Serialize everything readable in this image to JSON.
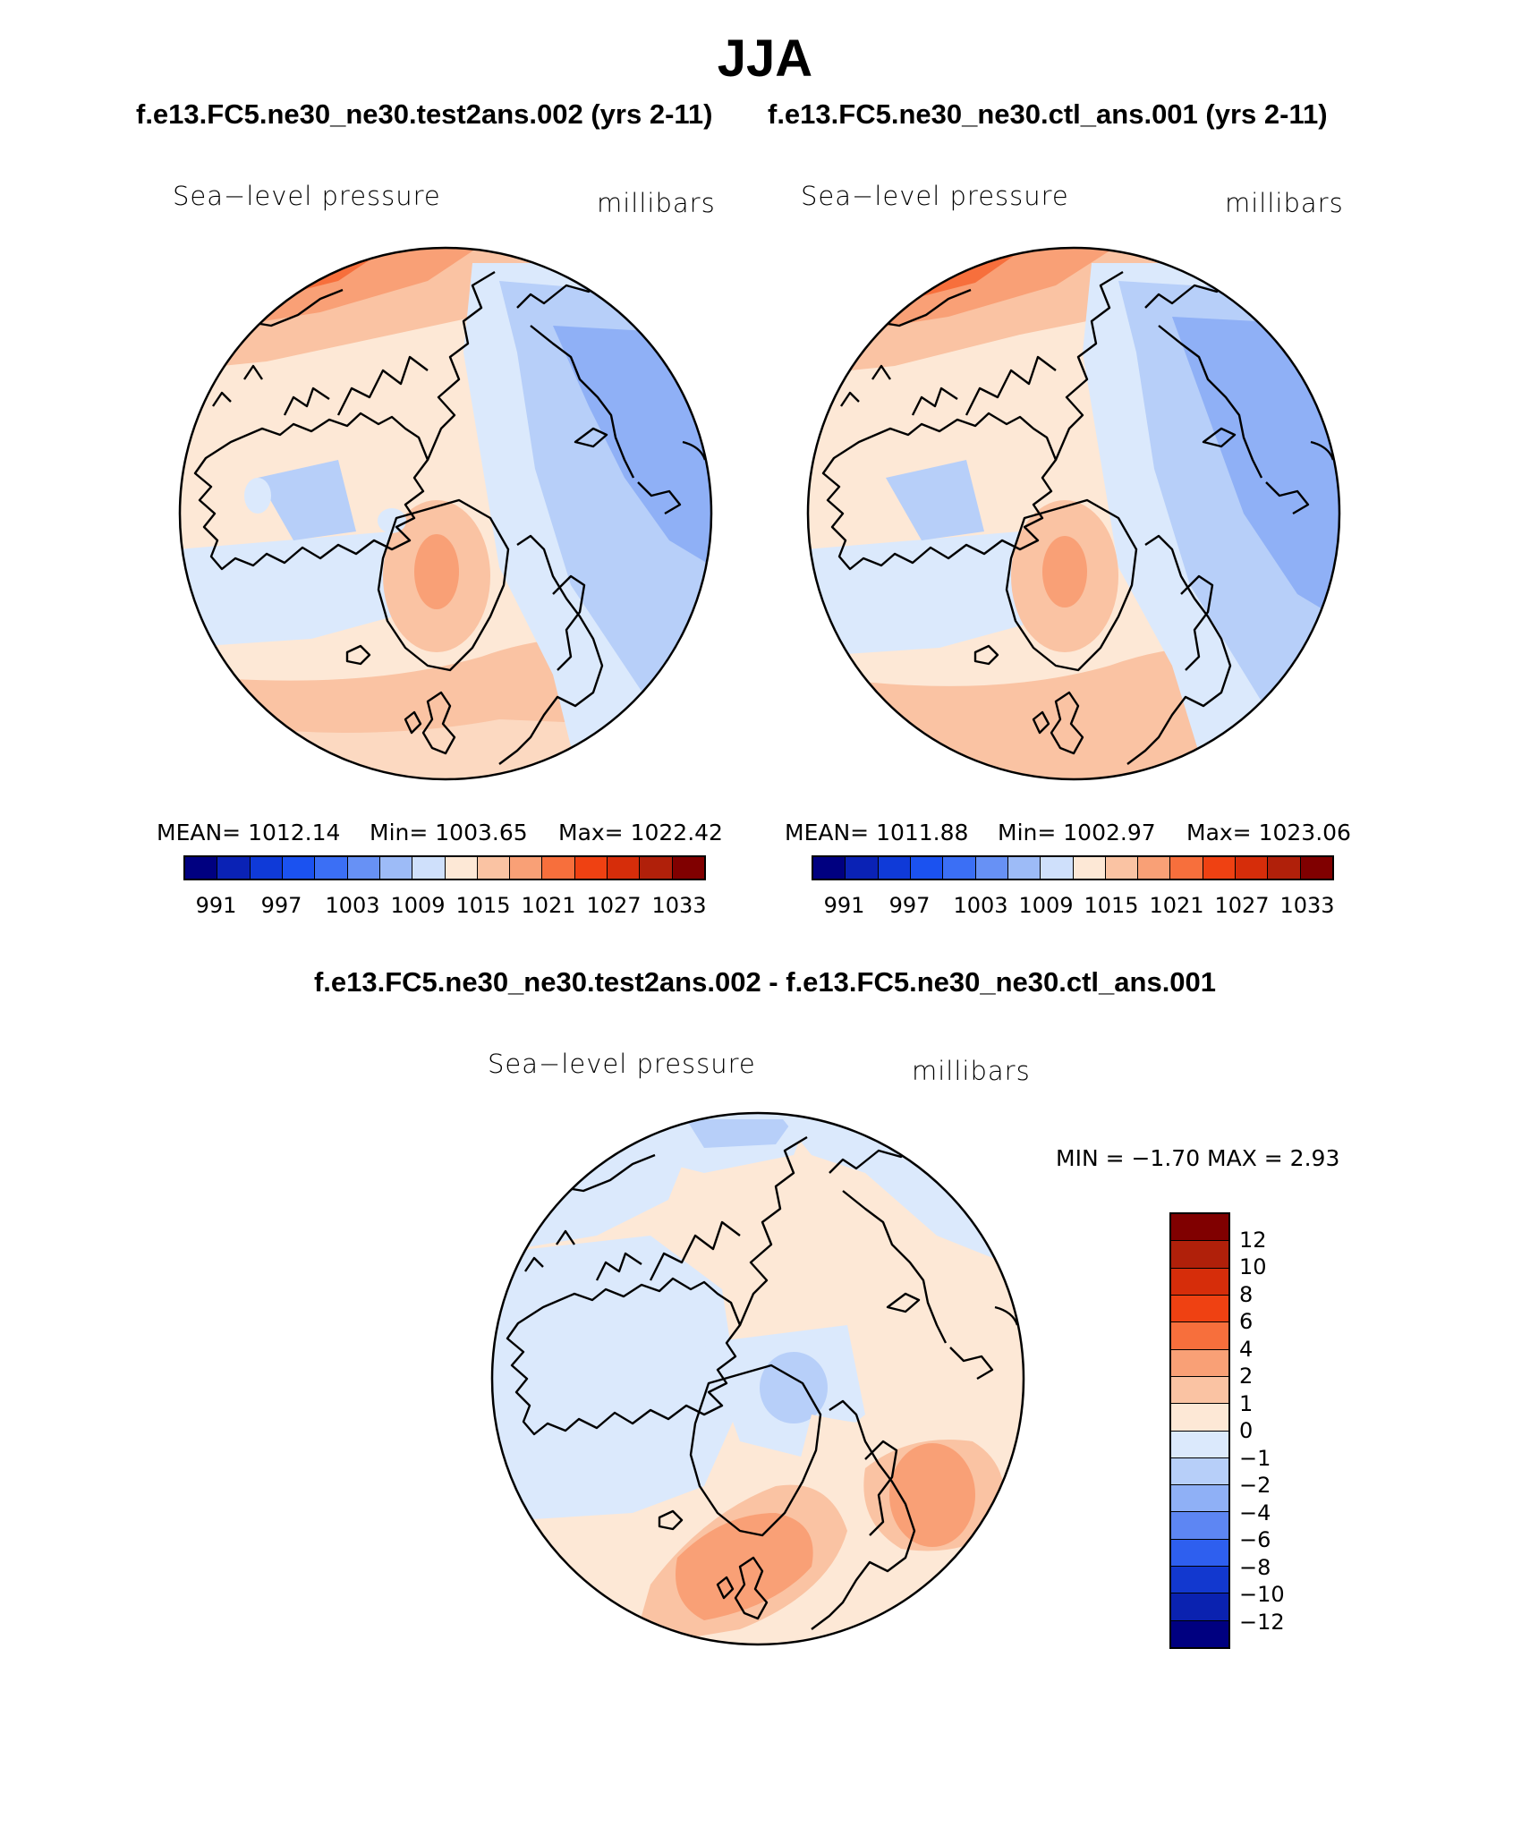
{
  "title": "JJA",
  "case_a_title": "f.e13.FC5.ne30_ne30.test2ans.002 (yrs 2-11)",
  "case_b_title": "f.e13.FC5.ne30_ne30.ctl_ans.001 (yrs 2-11)",
  "diff_title": "f.e13.FC5.ne30_ne30.test2ans.002 - f.e13.FC5.ne30_ne30.ctl_ans.001",
  "variable": "Sea−level pressure",
  "units": "millibars",
  "panel_a": {
    "mean": "MEAN=  1012.14",
    "min": "Min=  1003.65",
    "max": "Max=  1022.42"
  },
  "panel_b": {
    "mean": "MEAN=  1011.88",
    "min": "Min=  1002.97",
    "max": "Max=  1023.06"
  },
  "panel_diff": {
    "minmax": "MIN =   −1.70  MAX =     2.93"
  },
  "abs_colorbar": {
    "ticks": [
      "991",
      "997",
      "1003",
      "1009",
      "1015",
      "1021",
      "1027",
      "1033"
    ],
    "colors": [
      "#000080",
      "#0a22b5",
      "#0f3ad8",
      "#1b52f0",
      "#3b6ff5",
      "#6791f5",
      "#9dbbf7",
      "#cfe0fb",
      "#fde8d6",
      "#fac3a3",
      "#f9a076",
      "#f76f3c",
      "#ef4112",
      "#d62d0a",
      "#b0200a",
      "#800000"
    ]
  },
  "diff_colorbar": {
    "ticks": [
      "12",
      "10",
      "8",
      "6",
      "4",
      "2",
      "1",
      "0",
      "−1",
      "−2",
      "−4",
      "−6",
      "−8",
      "−10",
      "−12"
    ],
    "colors": [
      "#800000",
      "#b0200a",
      "#d62d0a",
      "#ef4112",
      "#f76f3c",
      "#f9a076",
      "#fac3a3",
      "#fde8d6",
      "#dbe9fc",
      "#b7cff9",
      "#8fb0f6",
      "#5d86f3",
      "#2e5fef",
      "#1238cf",
      "#0a22b0",
      "#000080"
    ]
  },
  "colors": {
    "background": "#ffffff",
    "neutral_pos": "#fde8d6",
    "neutral_neg": "#dbe9fc"
  }
}
